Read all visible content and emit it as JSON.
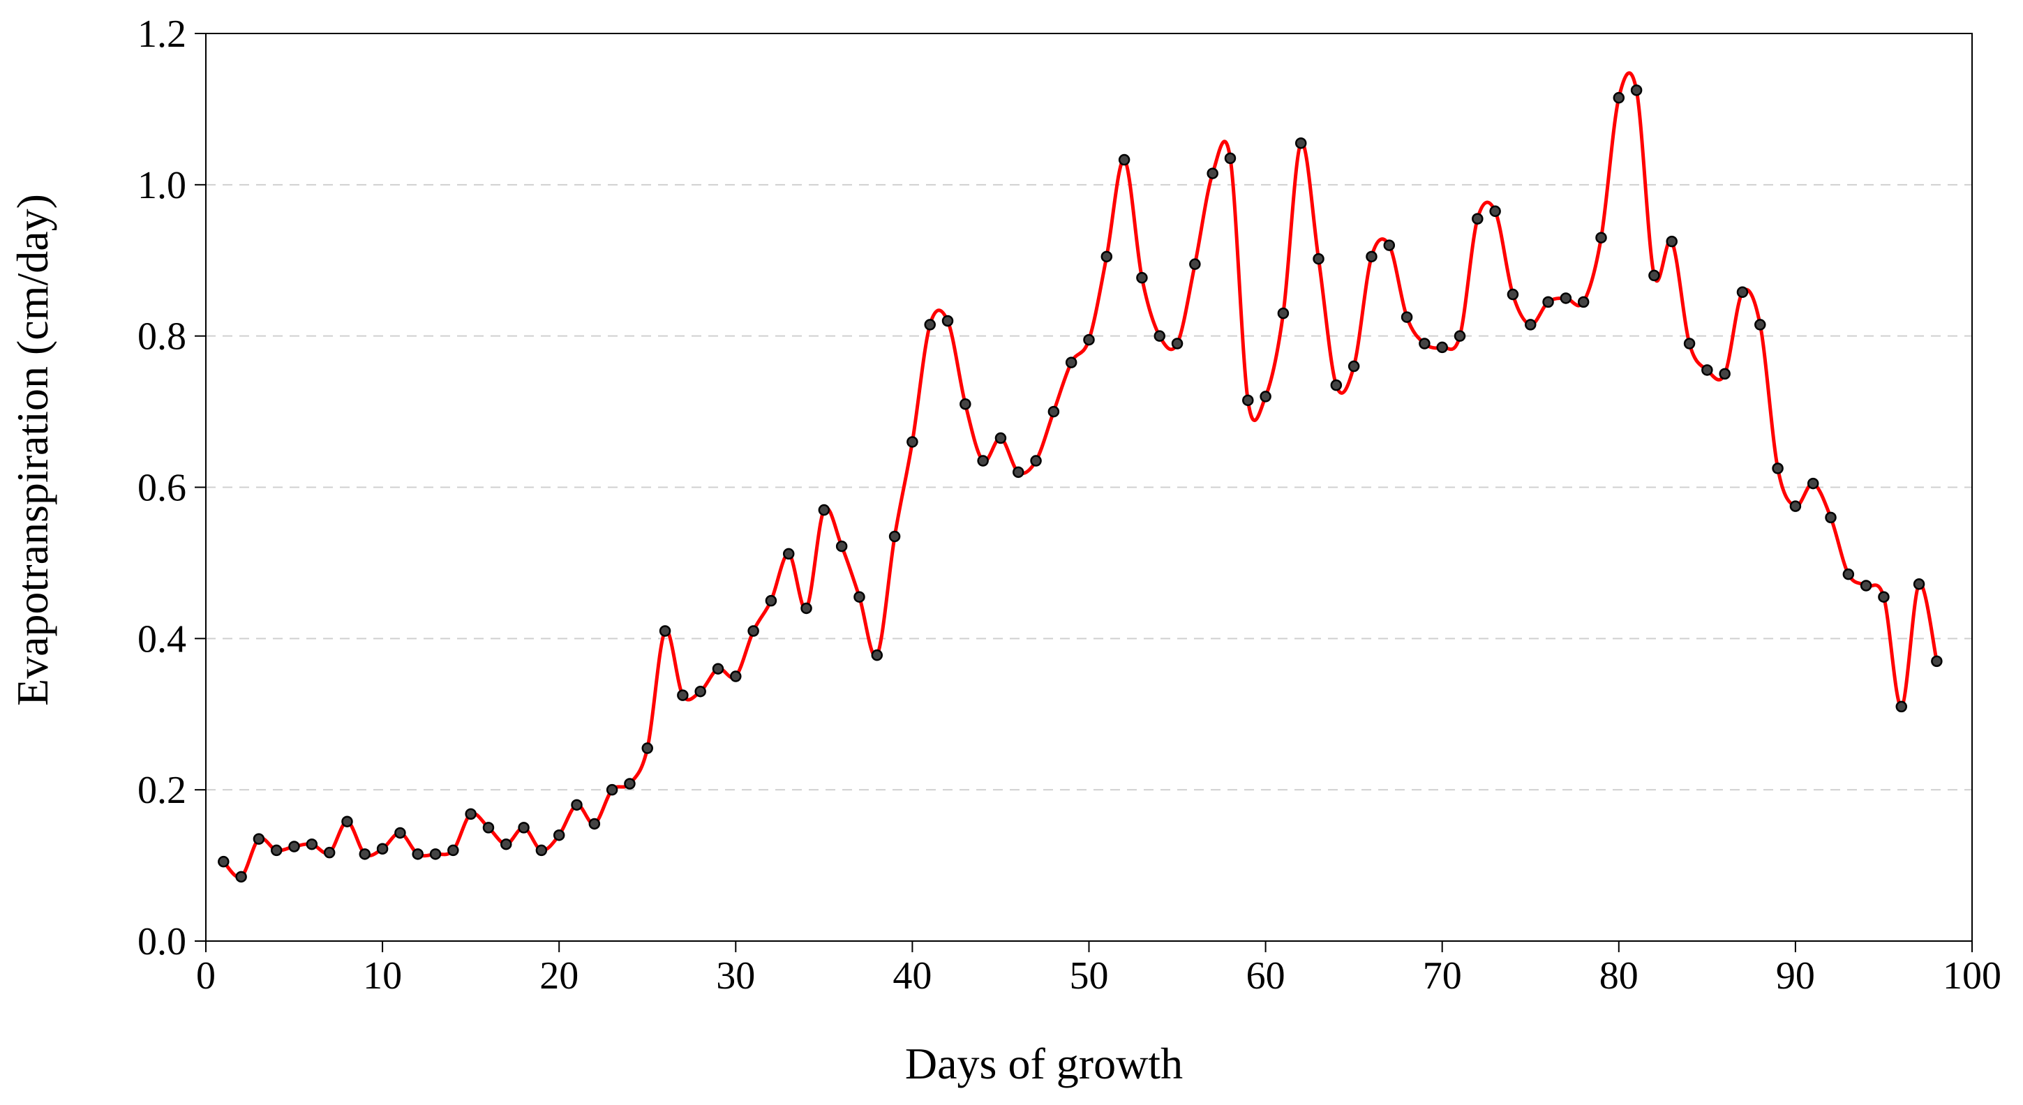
{
  "chart_data": {
    "type": "line",
    "title": "",
    "xlabel": "Days of growth",
    "ylabel": "Evapotranspiration  (cm/day)",
    "xlim": [
      0,
      100
    ],
    "ylim": [
      0,
      1.2
    ],
    "x_ticks": [
      0,
      10,
      20,
      30,
      40,
      50,
      60,
      70,
      80,
      90,
      100
    ],
    "x_tick_labels": [
      "0",
      "10",
      "20",
      "30",
      "40",
      "50",
      "60",
      "70",
      "80",
      "90",
      "100"
    ],
    "y_ticks": [
      0,
      0.2,
      0.4,
      0.6,
      0.8,
      1.0,
      1.2
    ],
    "y_tick_labels": [
      "0.0",
      "0.2",
      "0.4",
      "0.6",
      "0.8",
      "1.0",
      "1.2"
    ],
    "grid": "horizontal dashed",
    "legend": "none",
    "line_color": "#ff0000",
    "marker_color": "#444444",
    "series": [
      {
        "x": [
          1,
          2,
          3,
          4,
          5,
          6,
          7,
          8,
          9,
          10,
          11,
          12,
          13,
          14,
          15,
          16,
          17,
          18,
          19,
          20,
          21,
          22,
          23,
          24,
          25,
          26,
          27,
          28,
          29,
          30,
          31,
          32,
          33,
          34,
          35,
          36,
          37,
          38,
          39,
          40,
          41,
          42,
          43,
          44,
          45,
          46,
          47,
          48,
          49,
          50,
          51,
          52,
          53,
          54,
          55,
          56,
          57,
          58,
          59,
          60,
          61,
          62,
          63,
          64,
          65,
          66,
          67,
          68,
          69,
          70,
          71,
          72,
          73,
          74,
          75,
          76,
          77,
          78,
          79,
          80,
          81,
          82,
          83,
          84,
          85,
          86,
          87,
          88,
          89,
          90,
          91,
          92,
          93,
          94,
          95,
          96,
          97,
          98
        ],
        "y": [
          0.105,
          0.085,
          0.135,
          0.12,
          0.125,
          0.128,
          0.117,
          0.158,
          0.115,
          0.122,
          0.143,
          0.115,
          0.115,
          0.12,
          0.168,
          0.15,
          0.128,
          0.15,
          0.12,
          0.14,
          0.18,
          0.155,
          0.2,
          0.208,
          0.255,
          0.41,
          0.325,
          0.33,
          0.36,
          0.35,
          0.41,
          0.45,
          0.512,
          0.44,
          0.57,
          0.522,
          0.455,
          0.378,
          0.535,
          0.66,
          0.815,
          0.82,
          0.71,
          0.635,
          0.665,
          0.62,
          0.635,
          0.7,
          0.765,
          0.795,
          0.905,
          1.033,
          0.877,
          0.8,
          0.79,
          0.895,
          1.015,
          1.035,
          0.715,
          0.72,
          0.83,
          1.055,
          0.902,
          0.735,
          0.76,
          0.905,
          0.92,
          0.825,
          0.79,
          0.785,
          0.8,
          0.955,
          0.965,
          0.855,
          0.815,
          0.845,
          0.85,
          0.845,
          0.93,
          1.115,
          1.125,
          0.88,
          0.925,
          0.79,
          0.755,
          0.75,
          0.858,
          0.815,
          0.625,
          0.575,
          0.605,
          0.56,
          0.485,
          0.47,
          0.455,
          0.31,
          0.472,
          0.37
        ]
      }
    ]
  }
}
